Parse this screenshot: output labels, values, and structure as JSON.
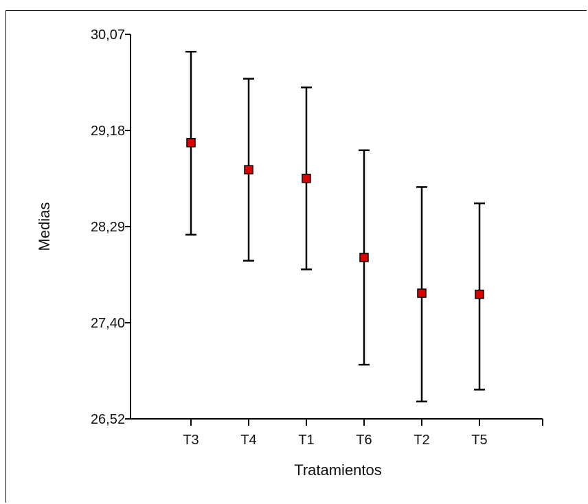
{
  "chart_data": {
    "type": "scatter",
    "title": "",
    "xlabel": "Tratamientos",
    "ylabel": "Medias",
    "categories": [
      "T3",
      "T4",
      "T1",
      "T6",
      "T2",
      "T5"
    ],
    "y_ticks": [
      "26,52",
      "27,40",
      "28,29",
      "29,18",
      "30,07"
    ],
    "ylim": [
      26.52,
      30.07
    ],
    "series": [
      {
        "means": [
          29.07,
          28.82,
          28.74,
          28.01,
          27.68,
          27.67
        ],
        "lower": [
          28.22,
          27.98,
          27.9,
          27.02,
          26.68,
          26.79
        ],
        "upper": [
          29.91,
          29.66,
          29.58,
          29.0,
          28.66,
          28.51
        ]
      }
    ],
    "colors": {
      "marker": "#dd0000",
      "marker_edge": "#000000",
      "axis": "#000000"
    },
    "grid": false,
    "legend": "none"
  }
}
